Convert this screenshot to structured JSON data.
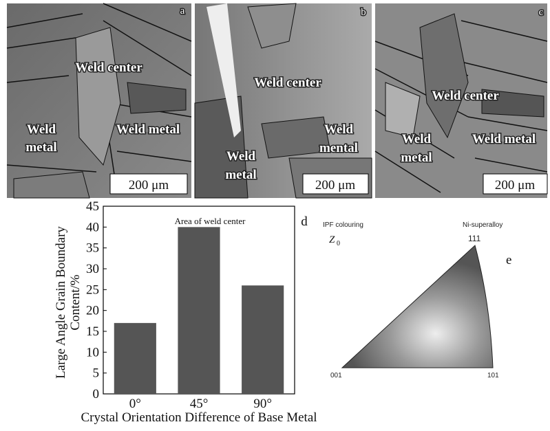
{
  "panels": [
    {
      "letter": "a",
      "labels": [
        {
          "lines": [
            "Weld center"
          ]
        },
        {
          "lines": [
            "Weld",
            "metal"
          ]
        },
        {
          "lines": [
            "Weld metal"
          ]
        }
      ],
      "scale_bar": "200 μm"
    },
    {
      "letter": "b",
      "labels": [
        {
          "lines": [
            "Weld center"
          ]
        },
        {
          "lines": [
            "Weld",
            "mental"
          ]
        },
        {
          "lines": [
            "Weld",
            "metal"
          ]
        }
      ],
      "scale_bar": "200 μm"
    },
    {
      "letter": "c",
      "labels": [
        {
          "lines": [
            "Weld center"
          ]
        },
        {
          "lines": [
            "Weld",
            "metal"
          ]
        },
        {
          "lines": [
            "Weld metal"
          ]
        }
      ],
      "scale_bar": "200 μm"
    }
  ],
  "chart_data": {
    "type": "bar",
    "panel_letter": "d",
    "title": "Area of  weld center",
    "y_label": [
      "Large Angle Grain Boundary",
      "Content/%"
    ],
    "x_label": "Crystal Orientation Difference of Base Metal",
    "categories": [
      "0°",
      "45°",
      "90°"
    ],
    "values": [
      17,
      40,
      26
    ],
    "color": "#555555",
    "ylim": [
      0,
      45
    ],
    "yticks": [
      0,
      5,
      10,
      15,
      20,
      25,
      30,
      35,
      40,
      45
    ]
  },
  "ipf": {
    "panel_letter": "e",
    "title": "IPF colouring",
    "material": "Ni-superalloy",
    "axis": "Z",
    "axis_subscript": "0",
    "corners": [
      "001",
      "101",
      "111"
    ]
  }
}
